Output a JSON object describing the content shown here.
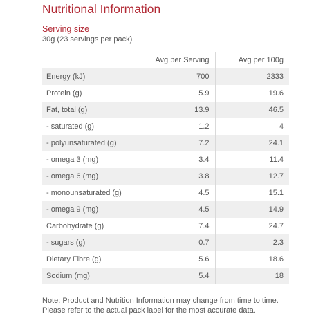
{
  "title": "Nutritional Information",
  "serving": {
    "label": "Serving size",
    "value": "30g (23 servings per pack)"
  },
  "table": {
    "headers": [
      "",
      "Avg per Serving",
      "Avg per 100g"
    ],
    "rows": [
      {
        "name": "Energy (kJ)",
        "per_serving": "700",
        "per_100g": "2333"
      },
      {
        "name": "Protein (g)",
        "per_serving": "5.9",
        "per_100g": "19.6"
      },
      {
        "name": "Fat, total (g)",
        "per_serving": "13.9",
        "per_100g": "46.5"
      },
      {
        "name": "- saturated (g)",
        "per_serving": "1.2",
        "per_100g": "4"
      },
      {
        "name": "- polyunsaturated (g)",
        "per_serving": "7.2",
        "per_100g": "24.1"
      },
      {
        "name": "- omega 3 (mg)",
        "per_serving": "3.4",
        "per_100g": "11.4"
      },
      {
        "name": "- omega 6 (mg)",
        "per_serving": "3.8",
        "per_100g": "12.7"
      },
      {
        "name": "- monounsaturated (g)",
        "per_serving": "4.5",
        "per_100g": "15.1"
      },
      {
        "name": "- omega 9 (mg)",
        "per_serving": "4.5",
        "per_100g": "14.9"
      },
      {
        "name": "Carbohydrate (g)",
        "per_serving": "7.4",
        "per_100g": "24.7"
      },
      {
        "name": "- sugars (g)",
        "per_serving": "0.7",
        "per_100g": "2.3"
      },
      {
        "name": "Dietary Fibre (g)",
        "per_serving": "5.6",
        "per_100g": "18.6"
      },
      {
        "name": "Sodium (mg)",
        "per_serving": "5.4",
        "per_100g": "18"
      }
    ]
  },
  "note": "Note: Product and Nutrition Information may change from time to time. Please refer to the actual pack label for the most accurate data.",
  "colors": {
    "accent": "#b22a35",
    "text": "#555555",
    "row_shade": "#efefef",
    "divider": "#d9d9d9"
  }
}
